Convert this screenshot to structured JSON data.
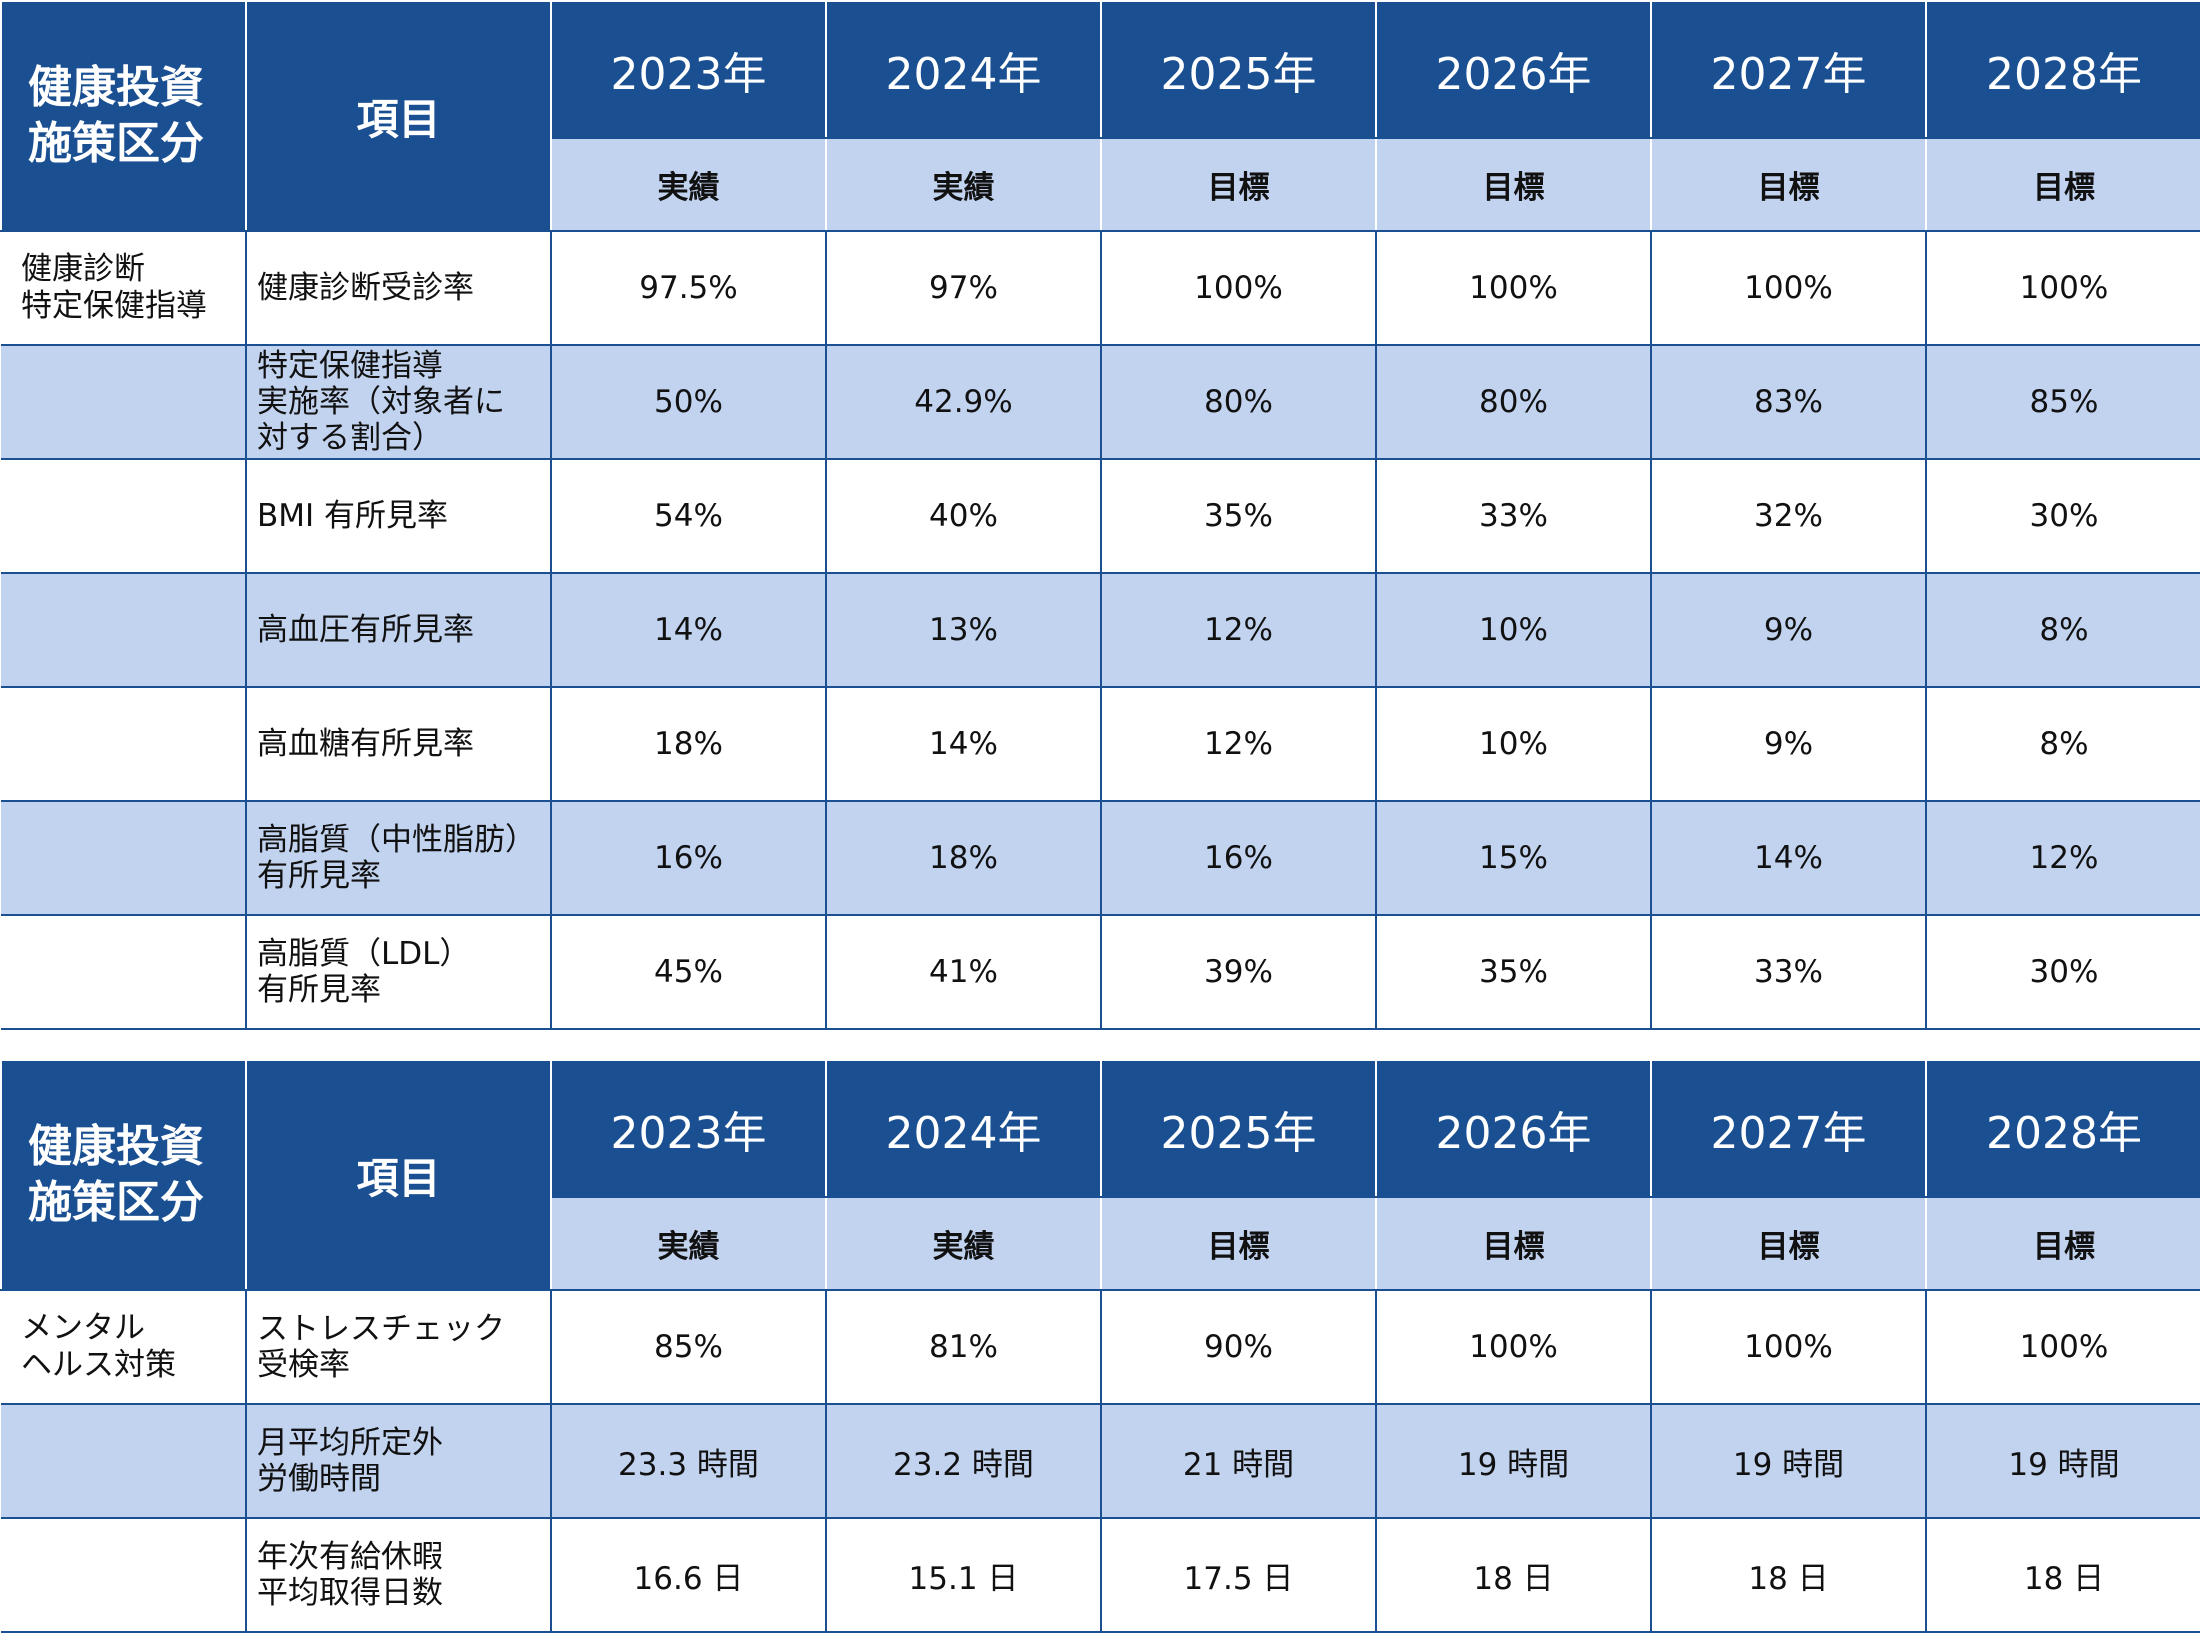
{
  "tables": [
    {
      "header": {
        "category": [
          "健康投資",
          "施策区分"
        ],
        "item": "項目",
        "years": [
          "2023年",
          "2024年",
          "2025年",
          "2026年",
          "2027年",
          "2028年"
        ],
        "types": [
          "実績",
          "実績",
          "目標",
          "目標",
          "目標",
          "目標"
        ]
      },
      "rows": [
        {
          "category": [
            "健康診断",
            "特定保健指導"
          ],
          "item": [
            "健康診断受診率"
          ],
          "values": [
            "97.5%",
            "97%",
            "100%",
            "100%",
            "100%",
            "100%"
          ]
        },
        {
          "category": [],
          "item": [
            "特定保健指導",
            "実施率（対象者に",
            "対する割合）"
          ],
          "values": [
            "50%",
            "42.9%",
            "80%",
            "80%",
            "83%",
            "85%"
          ]
        },
        {
          "category": [],
          "item": [
            "BMI 有所見率"
          ],
          "values": [
            "54%",
            "40%",
            "35%",
            "33%",
            "32%",
            "30%"
          ]
        },
        {
          "category": [],
          "item": [
            "高血圧有所見率"
          ],
          "values": [
            "14%",
            "13%",
            "12%",
            "10%",
            "9%",
            "8%"
          ]
        },
        {
          "category": [],
          "item": [
            "高血糖有所見率"
          ],
          "values": [
            "18%",
            "14%",
            "12%",
            "10%",
            "9%",
            "8%"
          ]
        },
        {
          "category": [],
          "item": [
            "高脂質（中性脂肪）",
            "有所見率"
          ],
          "values": [
            "16%",
            "18%",
            "16%",
            "15%",
            "14%",
            "12%"
          ]
        },
        {
          "category": [],
          "item": [
            "高脂質（LDL）",
            "有所見率"
          ],
          "values": [
            "45%",
            "41%",
            "39%",
            "35%",
            "33%",
            "30%"
          ]
        }
      ]
    },
    {
      "header": {
        "category": [
          "健康投資",
          "施策区分"
        ],
        "item": "項目",
        "years": [
          "2023年",
          "2024年",
          "2025年",
          "2026年",
          "2027年",
          "2028年"
        ],
        "types": [
          "実績",
          "実績",
          "目標",
          "目標",
          "目標",
          "目標"
        ]
      },
      "rows": [
        {
          "category": [
            "メンタル",
            "ヘルス対策"
          ],
          "item": [
            "ストレスチェック",
            "受検率"
          ],
          "values": [
            "85%",
            "81%",
            "90%",
            "100%",
            "100%",
            "100%"
          ]
        },
        {
          "category": [],
          "item": [
            "月平均所定外",
            "労働時間"
          ],
          "values": [
            "23.3 時間",
            "23.2 時間",
            "21 時間",
            "19 時間",
            "19 時間",
            "19 時間"
          ]
        },
        {
          "category": [],
          "item": [
            "年次有給休暇",
            "平均取得日数"
          ],
          "values": [
            "16.6 日",
            "15.1 日",
            "17.5 日",
            "18 日",
            "18 日",
            "18 日"
          ]
        }
      ]
    }
  ],
  "colors": {
    "header_dark": "#1a4f91",
    "header_light": "#c2d3f0",
    "category_text": "#1a4f91"
  }
}
